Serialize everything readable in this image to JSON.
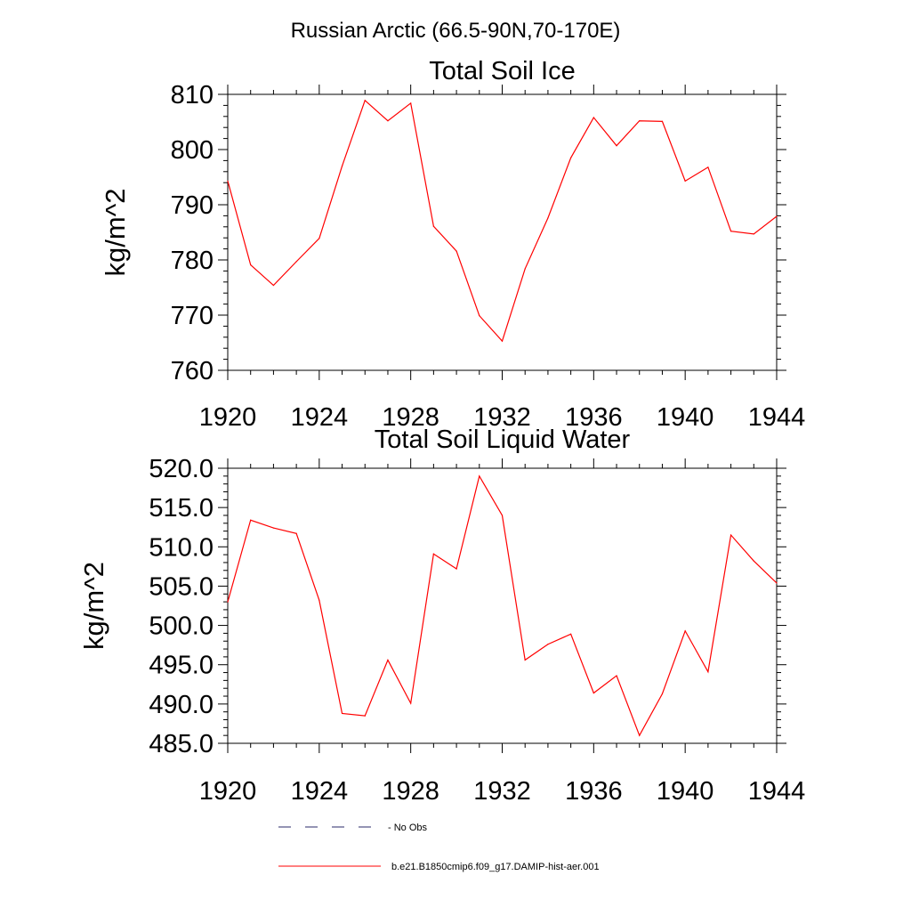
{
  "figure": {
    "title": "Russian Arctic (66.5-90N,70-170E)",
    "legend": [
      {
        "label": "No Obs",
        "style": "dashed",
        "color": "#2a2a6a"
      },
      {
        "label": "b.e21.B1850cmip6.f09_g17.DAMIP-hist-aer.001",
        "style": "solid",
        "color": "#ff0000"
      }
    ]
  },
  "chart_data": [
    {
      "type": "line",
      "title": "Total Soil Ice",
      "xlabel": "",
      "ylabel": "kg/m^2",
      "xlim": [
        1920,
        1944
      ],
      "ylim": [
        760,
        810
      ],
      "x_ticks": [
        "1920",
        "1924",
        "1928",
        "1932",
        "1936",
        "1940",
        "1944"
      ],
      "y_ticks": [
        "760",
        "770",
        "780",
        "790",
        "800",
        "810"
      ],
      "grid": false,
      "x": [
        1920,
        1921,
        1922,
        1923,
        1924,
        1925,
        1926,
        1927,
        1928,
        1929,
        1930,
        1931,
        1932,
        1933,
        1934,
        1935,
        1936,
        1937,
        1938,
        1939,
        1940,
        1941,
        1942,
        1943,
        1944
      ],
      "series": [
        {
          "color": "#ff0000",
          "values": [
            794.3,
            779.1,
            775.4,
            779.7,
            783.9,
            797.0,
            808.9,
            805.2,
            808.4,
            786.1,
            781.6,
            769.9,
            765.3,
            778.4,
            787.6,
            798.5,
            805.8,
            800.7,
            805.2,
            805.1,
            794.3,
            796.8,
            785.2,
            784.7,
            787.9
          ]
        }
      ]
    },
    {
      "type": "line",
      "title": "Total Soil Liquid Water",
      "xlabel": "",
      "ylabel": "kg/m^2",
      "xlim": [
        1920,
        1944
      ],
      "ylim": [
        485,
        520
      ],
      "x_ticks": [
        "1920",
        "1924",
        "1928",
        "1932",
        "1936",
        "1940",
        "1944"
      ],
      "y_ticks": [
        "485.0",
        "490.0",
        "495.0",
        "500.0",
        "505.0",
        "510.0",
        "515.0",
        "520.0"
      ],
      "grid": false,
      "x": [
        1920,
        1921,
        1922,
        1923,
        1924,
        1925,
        1926,
        1927,
        1928,
        1929,
        1930,
        1931,
        1932,
        1933,
        1934,
        1935,
        1936,
        1937,
        1938,
        1939,
        1940,
        1941,
        1942,
        1943,
        1944
      ],
      "series": [
        {
          "color": "#ff0000",
          "values": [
            503.0,
            513.4,
            512.4,
            511.7,
            503.2,
            488.8,
            488.5,
            495.6,
            490.1,
            509.1,
            507.2,
            519.0,
            514.0,
            495.6,
            497.6,
            498.9,
            491.4,
            493.6,
            486.0,
            491.3,
            499.3,
            494.1,
            511.5,
            508.2,
            505.4
          ]
        }
      ]
    }
  ]
}
